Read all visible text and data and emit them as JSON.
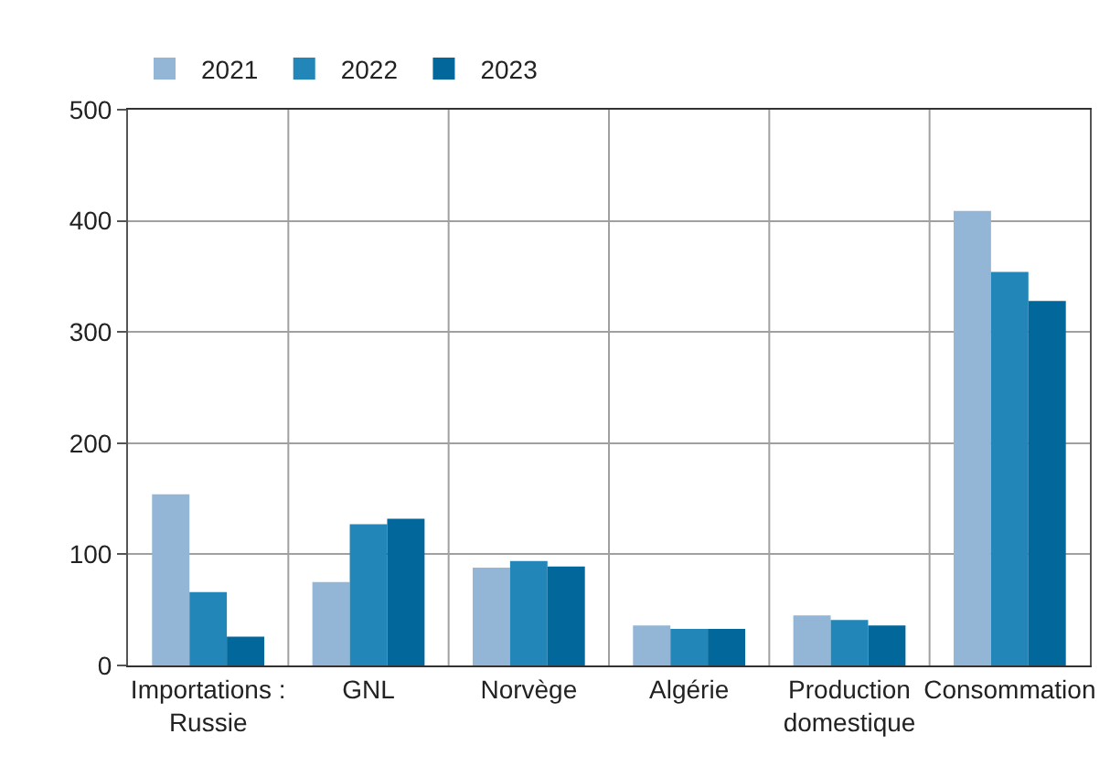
{
  "chart_data": {
    "type": "bar",
    "categories": [
      "Importations :\nRussie",
      "GNL",
      "Norvège",
      "Algérie",
      "Production\ndomestique",
      "Consommation"
    ],
    "series": [
      {
        "name": "2021",
        "color": "#93b6d6",
        "values": [
          154,
          75,
          88,
          36,
          45,
          409
        ]
      },
      {
        "name": "2022",
        "color": "#2386b9",
        "values": [
          66,
          127,
          94,
          33,
          41,
          354
        ]
      },
      {
        "name": "2023",
        "color": "#02689b",
        "values": [
          26,
          132,
          89,
          33,
          36,
          328
        ]
      }
    ],
    "ylim": [
      0,
      500
    ],
    "yticks": [
      0,
      100,
      200,
      300,
      400,
      500
    ],
    "grid": true,
    "legend": "top left"
  }
}
